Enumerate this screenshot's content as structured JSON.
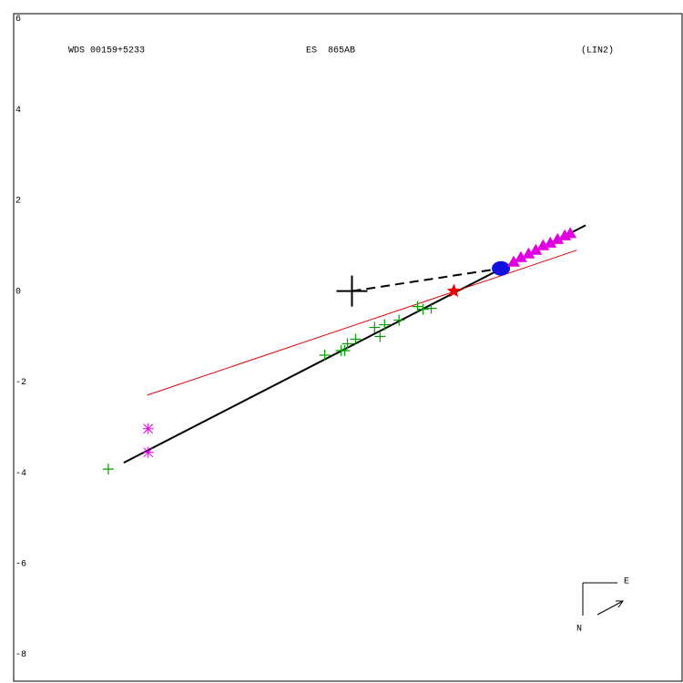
{
  "chart_data": {
    "type": "scatter",
    "title": "WDS 00159+5233",
    "subtitle": "ES  865AB",
    "annotation": "(LIN2)",
    "compass": {
      "east": "E",
      "north": "N"
    },
    "xlim": [
      -7.47,
      7.29
    ],
    "ylim": [
      -8.59,
      6.11
    ],
    "yticks": [
      6,
      4,
      2,
      0,
      -2,
      -4,
      -6,
      -8
    ],
    "grid": false,
    "series": [
      {
        "marker": "line",
        "color": "#000000",
        "width": 2,
        "x": [
          -5.04,
          5.16
        ],
        "values": [
          -3.78,
          1.45
        ]
      },
      {
        "marker": "line",
        "color": "#dd0000",
        "width": 1,
        "x": [
          -4.52,
          4.96
        ],
        "values": [
          -2.29,
          0.9
        ]
      },
      {
        "marker": "dashed",
        "color": "#000000",
        "width": 2,
        "x": [
          0,
          3.29
        ],
        "values": [
          0,
          0.5
        ]
      },
      {
        "marker": "plus",
        "color": "#00a000",
        "x": [
          -5.38,
          -0.6,
          -0.24,
          -0.1,
          -0.16,
          0.08,
          0.5,
          0.62,
          0.72,
          1.04,
          1.45,
          1.57,
          1.75
        ],
        "values": [
          -3.92,
          -1.41,
          -1.31,
          -1.16,
          -1.31,
          -1.06,
          -0.8,
          -1.0,
          -0.74,
          -0.64,
          -0.34,
          -0.4,
          -0.38
        ]
      },
      {
        "marker": "asterisk",
        "color": "#e000e0",
        "x": [
          -4.5,
          -4.5
        ],
        "values": [
          -3.03,
          -3.55
        ]
      },
      {
        "marker": "star",
        "color": "#ee0000",
        "x": [
          2.25
        ],
        "values": [
          0
        ]
      },
      {
        "marker": "circle",
        "color": "#1010e0",
        "x": [
          3.29
        ],
        "values": [
          0.5
        ]
      },
      {
        "marker": "triangle",
        "color": "#e000e0",
        "x": [
          3.57,
          3.73,
          3.9,
          4.06,
          4.22,
          4.38,
          4.54,
          4.7,
          4.82
        ],
        "values": [
          0.64,
          0.74,
          0.82,
          0.9,
          1.0,
          1.06,
          1.14,
          1.22,
          1.27
        ]
      },
      {
        "marker": "cross",
        "color": "#000000",
        "x": [
          0
        ],
        "values": [
          0
        ]
      }
    ]
  }
}
